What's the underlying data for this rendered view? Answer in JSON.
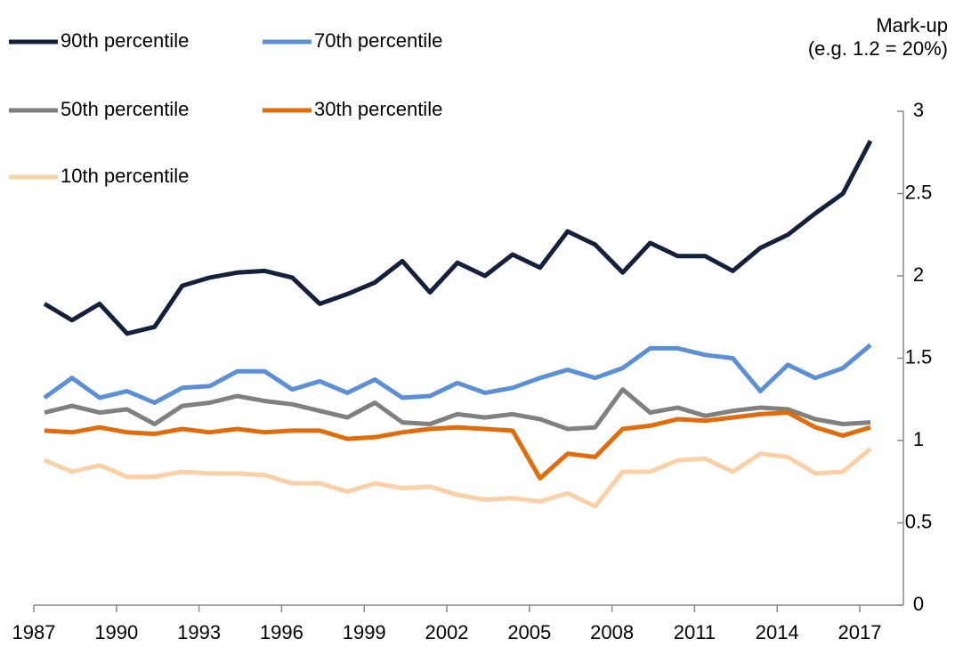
{
  "chart_data": {
    "type": "line",
    "ylabel": [
      "Mark-up",
      "(e.g. 1.2 = 20%)"
    ],
    "categories": [
      "1987",
      null,
      null,
      "1990",
      null,
      null,
      "1993",
      null,
      null,
      "1996",
      null,
      null,
      "1999",
      null,
      null,
      "2002",
      null,
      null,
      "2005",
      null,
      null,
      "2008",
      null,
      null,
      "2011",
      null,
      null,
      "2014",
      null,
      null,
      "2017"
    ],
    "series": [
      {
        "name": "90th percentile",
        "color": "#14213d",
        "values": [
          1.83,
          1.73,
          1.83,
          1.65,
          1.69,
          1.94,
          1.99,
          2.02,
          2.03,
          1.99,
          1.83,
          1.89,
          1.96,
          2.09,
          1.9,
          2.08,
          2.0,
          2.13,
          2.05,
          2.27,
          2.19,
          2.02,
          2.2,
          2.12,
          2.12,
          2.03,
          2.17,
          2.25,
          2.38,
          2.5,
          2.82
        ]
      },
      {
        "name": "70th percentile",
        "color": "#5b8fd6",
        "values": [
          1.26,
          1.38,
          1.26,
          1.3,
          1.23,
          1.32,
          1.33,
          1.42,
          1.42,
          1.31,
          1.36,
          1.29,
          1.37,
          1.26,
          1.27,
          1.35,
          1.29,
          1.32,
          1.38,
          1.43,
          1.38,
          1.44,
          1.56,
          1.56,
          1.52,
          1.5,
          1.3,
          1.46,
          1.38,
          1.44,
          1.58
        ]
      },
      {
        "name": "50th percentile",
        "color": "#808080",
        "values": [
          1.17,
          1.21,
          1.17,
          1.19,
          1.1,
          1.21,
          1.23,
          1.27,
          1.24,
          1.22,
          1.18,
          1.14,
          1.23,
          1.11,
          1.1,
          1.16,
          1.14,
          1.16,
          1.13,
          1.07,
          1.08,
          1.31,
          1.17,
          1.2,
          1.15,
          1.18,
          1.2,
          1.19,
          1.13,
          1.1,
          1.11
        ]
      },
      {
        "name": "30th percentile",
        "color": "#e36c0a",
        "values": [
          1.06,
          1.05,
          1.08,
          1.05,
          1.04,
          1.07,
          1.05,
          1.07,
          1.05,
          1.06,
          1.06,
          1.01,
          1.02,
          1.05,
          1.07,
          1.08,
          1.07,
          1.06,
          0.77,
          0.92,
          0.9,
          1.07,
          1.09,
          1.13,
          1.12,
          1.14,
          1.16,
          1.17,
          1.08,
          1.03,
          1.08
        ]
      },
      {
        "name": "10th percentile",
        "color": "#fbd0a6",
        "values": [
          0.88,
          0.81,
          0.85,
          0.78,
          0.78,
          0.81,
          0.8,
          0.8,
          0.79,
          0.74,
          0.74,
          0.69,
          0.74,
          0.71,
          0.72,
          0.67,
          0.64,
          0.65,
          0.63,
          0.68,
          0.6,
          0.81,
          0.81,
          0.88,
          0.89,
          0.81,
          0.92,
          0.9,
          0.8,
          0.81,
          0.95
        ]
      }
    ],
    "ylim": [
      0,
      3
    ],
    "yticks": [
      0,
      0.5,
      1,
      1.5,
      2,
      2.5,
      3
    ]
  }
}
